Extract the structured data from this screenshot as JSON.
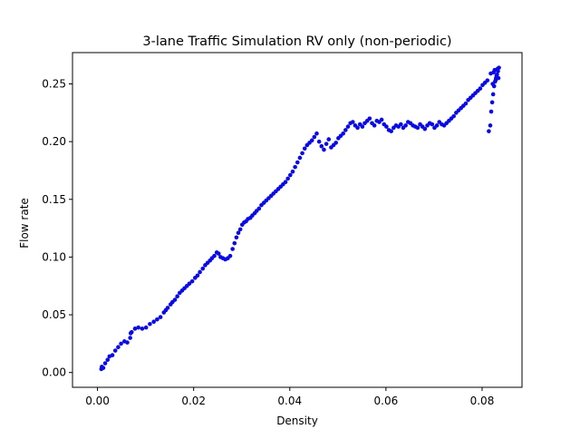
{
  "chart_data": {
    "type": "scatter",
    "title": "3-lane Traffic Simulation RV only (non-periodic)",
    "xlabel": "Density",
    "ylabel": "Flow rate",
    "xlim": [
      -0.0052,
      0.0883
    ],
    "ylim": [
      -0.0128,
      0.2771
    ],
    "xticks": [
      0.0,
      0.02,
      0.04,
      0.06,
      0.08
    ],
    "xtick_labels": [
      "0.00",
      "0.02",
      "0.04",
      "0.06",
      "0.08"
    ],
    "yticks": [
      0.0,
      0.05,
      0.1,
      0.15,
      0.2,
      0.25
    ],
    "ytick_labels": [
      "0.00",
      "0.05",
      "0.10",
      "0.15",
      "0.20",
      "0.25"
    ],
    "grid": false,
    "legend": "none",
    "marker_color": "#0a0ae6",
    "series": [
      {
        "x": [
          0.0008,
          0.0009,
          0.0012,
          0.0016,
          0.0021,
          0.0025,
          0.0031,
          0.0037,
          0.0043,
          0.0049,
          0.0056,
          0.0062,
          0.0068,
          0.0069,
          0.0071,
          0.0078,
          0.0085,
          0.0093,
          0.0101,
          0.0109,
          0.0117,
          0.0124,
          0.0131,
          0.0138,
          0.0142,
          0.0146,
          0.0152,
          0.0156,
          0.0161,
          0.0166,
          0.0171,
          0.0176,
          0.0181,
          0.0186,
          0.0191,
          0.0197,
          0.0203,
          0.0208,
          0.0213,
          0.0219,
          0.0224,
          0.0229,
          0.0234,
          0.0238,
          0.0243,
          0.0248,
          0.0252,
          0.0256,
          0.0261,
          0.0266,
          0.0271,
          0.0276,
          0.0281,
          0.0285,
          0.0289,
          0.0293,
          0.0297,
          0.0301,
          0.0305,
          0.0309,
          0.0313,
          0.0318,
          0.0322,
          0.0327,
          0.0331,
          0.0336,
          0.0341,
          0.0346,
          0.0351,
          0.0356,
          0.0361,
          0.0366,
          0.0371,
          0.0376,
          0.0381,
          0.0386,
          0.0391,
          0.0396,
          0.0401,
          0.0406,
          0.0411,
          0.0416,
          0.0421,
          0.0426,
          0.0431,
          0.0436,
          0.0441,
          0.0446,
          0.0451,
          0.0456,
          0.0461,
          0.0466,
          0.0471,
          0.0476,
          0.0481,
          0.0486,
          0.0491,
          0.0496,
          0.0501,
          0.0506,
          0.0511,
          0.0516,
          0.0521,
          0.0526,
          0.0531,
          0.0536,
          0.0541,
          0.0546,
          0.0551,
          0.0556,
          0.0561,
          0.0566,
          0.0571,
          0.0576,
          0.0581,
          0.0586,
          0.0591,
          0.0596,
          0.0601,
          0.0606,
          0.0611,
          0.0616,
          0.0621,
          0.0626,
          0.0631,
          0.0636,
          0.0641,
          0.0646,
          0.0651,
          0.0656,
          0.0661,
          0.0666,
          0.0671,
          0.0676,
          0.0681,
          0.0686,
          0.0691,
          0.0696,
          0.0701,
          0.0706,
          0.0711,
          0.0716,
          0.0721,
          0.0726,
          0.0731,
          0.0736,
          0.0741,
          0.0746,
          0.0751,
          0.0756,
          0.0761,
          0.0766,
          0.0771,
          0.0776,
          0.0781,
          0.0786,
          0.0791,
          0.0796,
          0.0801,
          0.0806,
          0.0811,
          0.0814,
          0.0817,
          0.0819,
          0.0821,
          0.0823,
          0.0825,
          0.0827,
          0.0829,
          0.0831,
          0.0833,
          0.0835,
          0.0818,
          0.0822,
          0.0826,
          0.083,
          0.0834,
          0.0824,
          0.0828,
          0.0832
        ],
        "y": [
          0.003,
          0.005,
          0.004,
          0.008,
          0.011,
          0.014,
          0.015,
          0.019,
          0.022,
          0.025,
          0.027,
          0.026,
          0.03,
          0.034,
          0.035,
          0.038,
          0.039,
          0.038,
          0.039,
          0.042,
          0.044,
          0.046,
          0.048,
          0.052,
          0.054,
          0.056,
          0.059,
          0.061,
          0.063,
          0.066,
          0.069,
          0.071,
          0.073,
          0.075,
          0.077,
          0.079,
          0.082,
          0.084,
          0.087,
          0.09,
          0.093,
          0.095,
          0.097,
          0.099,
          0.101,
          0.104,
          0.103,
          0.1,
          0.099,
          0.098,
          0.099,
          0.101,
          0.107,
          0.112,
          0.117,
          0.121,
          0.124,
          0.128,
          0.13,
          0.131,
          0.133,
          0.134,
          0.136,
          0.138,
          0.14,
          0.142,
          0.145,
          0.147,
          0.149,
          0.151,
          0.153,
          0.155,
          0.157,
          0.159,
          0.161,
          0.163,
          0.165,
          0.168,
          0.171,
          0.174,
          0.178,
          0.182,
          0.186,
          0.19,
          0.194,
          0.197,
          0.199,
          0.201,
          0.204,
          0.207,
          0.2,
          0.196,
          0.193,
          0.198,
          0.202,
          0.195,
          0.197,
          0.199,
          0.203,
          0.205,
          0.207,
          0.21,
          0.213,
          0.216,
          0.217,
          0.214,
          0.212,
          0.215,
          0.213,
          0.216,
          0.218,
          0.22,
          0.216,
          0.214,
          0.218,
          0.217,
          0.219,
          0.215,
          0.213,
          0.21,
          0.209,
          0.212,
          0.214,
          0.213,
          0.215,
          0.212,
          0.214,
          0.217,
          0.216,
          0.214,
          0.213,
          0.212,
          0.215,
          0.213,
          0.211,
          0.214,
          0.216,
          0.215,
          0.212,
          0.214,
          0.217,
          0.215,
          0.214,
          0.216,
          0.218,
          0.22,
          0.222,
          0.225,
          0.227,
          0.229,
          0.231,
          0.233,
          0.236,
          0.238,
          0.24,
          0.242,
          0.244,
          0.246,
          0.249,
          0.251,
          0.253,
          0.209,
          0.214,
          0.226,
          0.234,
          0.241,
          0.248,
          0.252,
          0.255,
          0.258,
          0.261,
          0.264,
          0.259,
          0.25,
          0.262,
          0.257,
          0.255,
          0.26,
          0.253,
          0.263
        ]
      }
    ]
  }
}
